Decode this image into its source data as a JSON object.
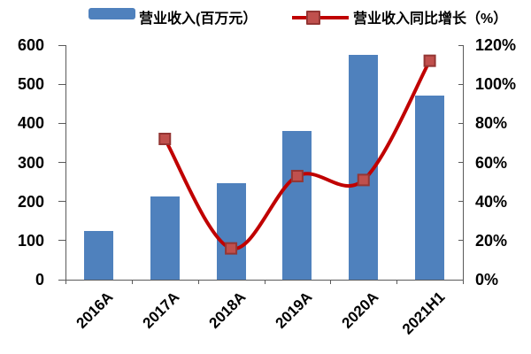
{
  "chart_data": {
    "type": "bar+line combo",
    "title": "",
    "categories": [
      "2016A",
      "2017A",
      "2018A",
      "2019A",
      "2020A",
      "2021H1"
    ],
    "series": [
      {
        "name": "营业收入(百万元）",
        "type": "bar",
        "axis": "left",
        "color": "#4F81BD",
        "values": [
          125,
          212,
          246,
          380,
          575,
          470
        ]
      },
      {
        "name": "营业收入同比增长（%）",
        "type": "line",
        "axis": "right",
        "color": "#C00000",
        "marker_color": "#C0504D",
        "marker_border_color": "#943634",
        "values": [
          null,
          72,
          16,
          53,
          51,
          112
        ]
      }
    ],
    "left_axis": {
      "min": 0,
      "max": 600,
      "step": 100,
      "tick_labels": [
        "0",
        "100",
        "200",
        "300",
        "400",
        "500",
        "600"
      ]
    },
    "right_axis": {
      "min": 0,
      "max": 120,
      "step": 20,
      "tick_labels": [
        "0%",
        "20%",
        "40%",
        "60%",
        "80%",
        "100%",
        "120%"
      ]
    },
    "grid": false,
    "legend_position": "top",
    "axis_color": "#5a5a5a"
  }
}
